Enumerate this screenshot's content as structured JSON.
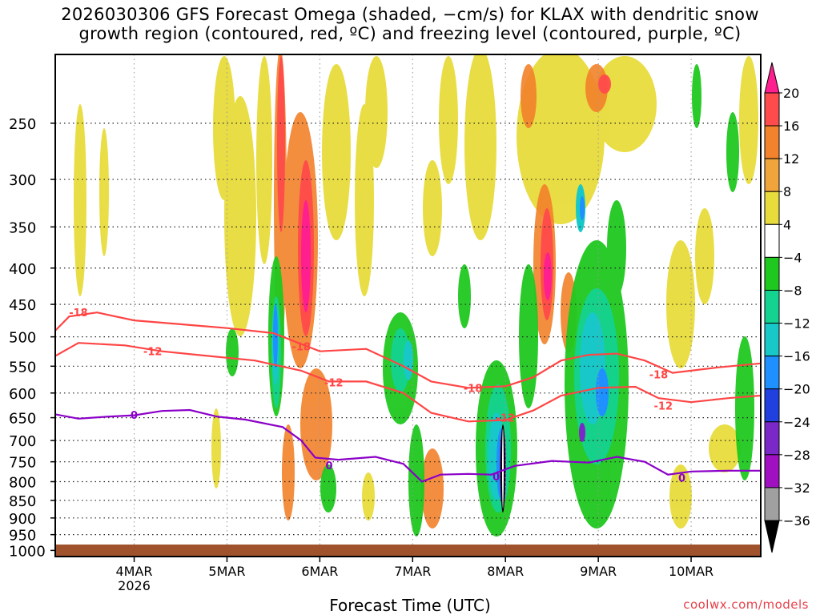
{
  "title_line1": "2026030306 GFS Forecast Omega (shaded, −cm/s) for KLAX with dendritic snow",
  "title_line2": "growth region (contoured, red, ºC) and freezing level (contoured, purple, ºC)",
  "credit": "coolwx.com/models",
  "chart_data": {
    "type": "heatmap",
    "xlabel": "Forecast Time (UTC)",
    "ylabel": "",
    "x_ticks": [
      {
        "label": "4MAR",
        "sublabel": "2026",
        "t": 1
      },
      {
        "label": "5MAR",
        "sublabel": "",
        "t": 2
      },
      {
        "label": "6MAR",
        "sublabel": "",
        "t": 3
      },
      {
        "label": "7MAR",
        "sublabel": "",
        "t": 4
      },
      {
        "label": "8MAR",
        "sublabel": "",
        "t": 5
      },
      {
        "label": "9MAR",
        "sublabel": "",
        "t": 6
      },
      {
        "label": "10MAR",
        "sublabel": "",
        "t": 7
      }
    ],
    "x_range": [
      0.15,
      7.75
    ],
    "y_ticks": [
      250,
      300,
      350,
      400,
      450,
      500,
      550,
      600,
      650,
      700,
      750,
      800,
      850,
      900,
      950,
      1000
    ],
    "y_range_hPa": [
      200,
      1020
    ],
    "y_scale": "log",
    "grid": true,
    "colorbar": {
      "labels": [
        "20",
        "16",
        "12",
        "8",
        "4",
        "−4",
        "−8",
        "−12",
        "−16",
        "−20",
        "−24",
        "−28",
        "−32",
        "−36"
      ],
      "colors": [
        "#ff1f8e",
        "#ff4b4b",
        "#f2822b",
        "#f0a43c",
        "#e8dc3c",
        "#ffffff",
        "#1fc81f",
        "#14d290",
        "#18c8c8",
        "#1e90ff",
        "#2040e0",
        "#7a28c8",
        "#a010c0",
        "#a0a0a0",
        "#000000"
      ]
    },
    "contours": [
      {
        "label": "-18",
        "color": "#ff4545",
        "points": [
          [
            0.15,
            490
          ],
          [
            0.3,
            468
          ],
          [
            0.6,
            462
          ],
          [
            1.0,
            474
          ],
          [
            1.5,
            480
          ],
          [
            2.0,
            486
          ],
          [
            2.5,
            494
          ],
          [
            3.0,
            524
          ],
          [
            3.5,
            520
          ],
          [
            3.9,
            550
          ],
          [
            4.2,
            578
          ],
          [
            4.6,
            590
          ],
          [
            5.0,
            587
          ],
          [
            5.3,
            570
          ],
          [
            5.6,
            540
          ],
          [
            5.9,
            530
          ],
          [
            6.2,
            528
          ],
          [
            6.5,
            540
          ],
          [
            6.8,
            562
          ],
          [
            7.3,
            552
          ],
          [
            7.75,
            545
          ]
        ],
        "label_at": [
          [
            0.4,
            462
          ],
          [
            2.8,
            516
          ],
          [
            4.65,
            590
          ],
          [
            6.65,
            565
          ]
        ]
      },
      {
        "label": "-12",
        "color": "#ff4545",
        "points": [
          [
            0.15,
            532
          ],
          [
            0.4,
            510
          ],
          [
            0.9,
            514
          ],
          [
            1.3,
            524
          ],
          [
            1.8,
            532
          ],
          [
            2.3,
            540
          ],
          [
            2.8,
            558
          ],
          [
            3.1,
            578
          ],
          [
            3.5,
            578
          ],
          [
            3.9,
            600
          ],
          [
            4.2,
            640
          ],
          [
            4.6,
            658
          ],
          [
            5.0,
            655
          ],
          [
            5.3,
            635
          ],
          [
            5.6,
            605
          ],
          [
            6.0,
            590
          ],
          [
            6.4,
            588
          ],
          [
            6.65,
            610
          ],
          [
            7.0,
            618
          ],
          [
            7.4,
            610
          ],
          [
            7.75,
            605
          ]
        ],
        "label_at": [
          [
            1.2,
            524
          ],
          [
            3.15,
            580
          ],
          [
            5.0,
            650
          ],
          [
            6.7,
            625
          ]
        ]
      },
      {
        "label": "0",
        "color": "#8b00c8",
        "points": [
          [
            0.15,
            643
          ],
          [
            0.4,
            652
          ],
          [
            0.7,
            648
          ],
          [
            1.0,
            645
          ],
          [
            1.3,
            636
          ],
          [
            1.6,
            634
          ],
          [
            1.9,
            648
          ],
          [
            2.2,
            654
          ],
          [
            2.6,
            670
          ],
          [
            2.8,
            700
          ],
          [
            2.95,
            740
          ],
          [
            3.2,
            745
          ],
          [
            3.6,
            738
          ],
          [
            3.9,
            755
          ],
          [
            4.1,
            800
          ],
          [
            4.3,
            782
          ],
          [
            4.6,
            780
          ],
          [
            4.85,
            782
          ],
          [
            5.1,
            760
          ],
          [
            5.5,
            748
          ],
          [
            5.9,
            752
          ],
          [
            6.2,
            738
          ],
          [
            6.5,
            750
          ],
          [
            6.75,
            782
          ],
          [
            7.0,
            774
          ],
          [
            7.4,
            772
          ],
          [
            7.75,
            772
          ]
        ],
        "label_at": [
          [
            1.0,
            644
          ],
          [
            3.1,
            758
          ],
          [
            4.9,
            787
          ],
          [
            6.9,
            790
          ]
        ]
      }
    ]
  }
}
